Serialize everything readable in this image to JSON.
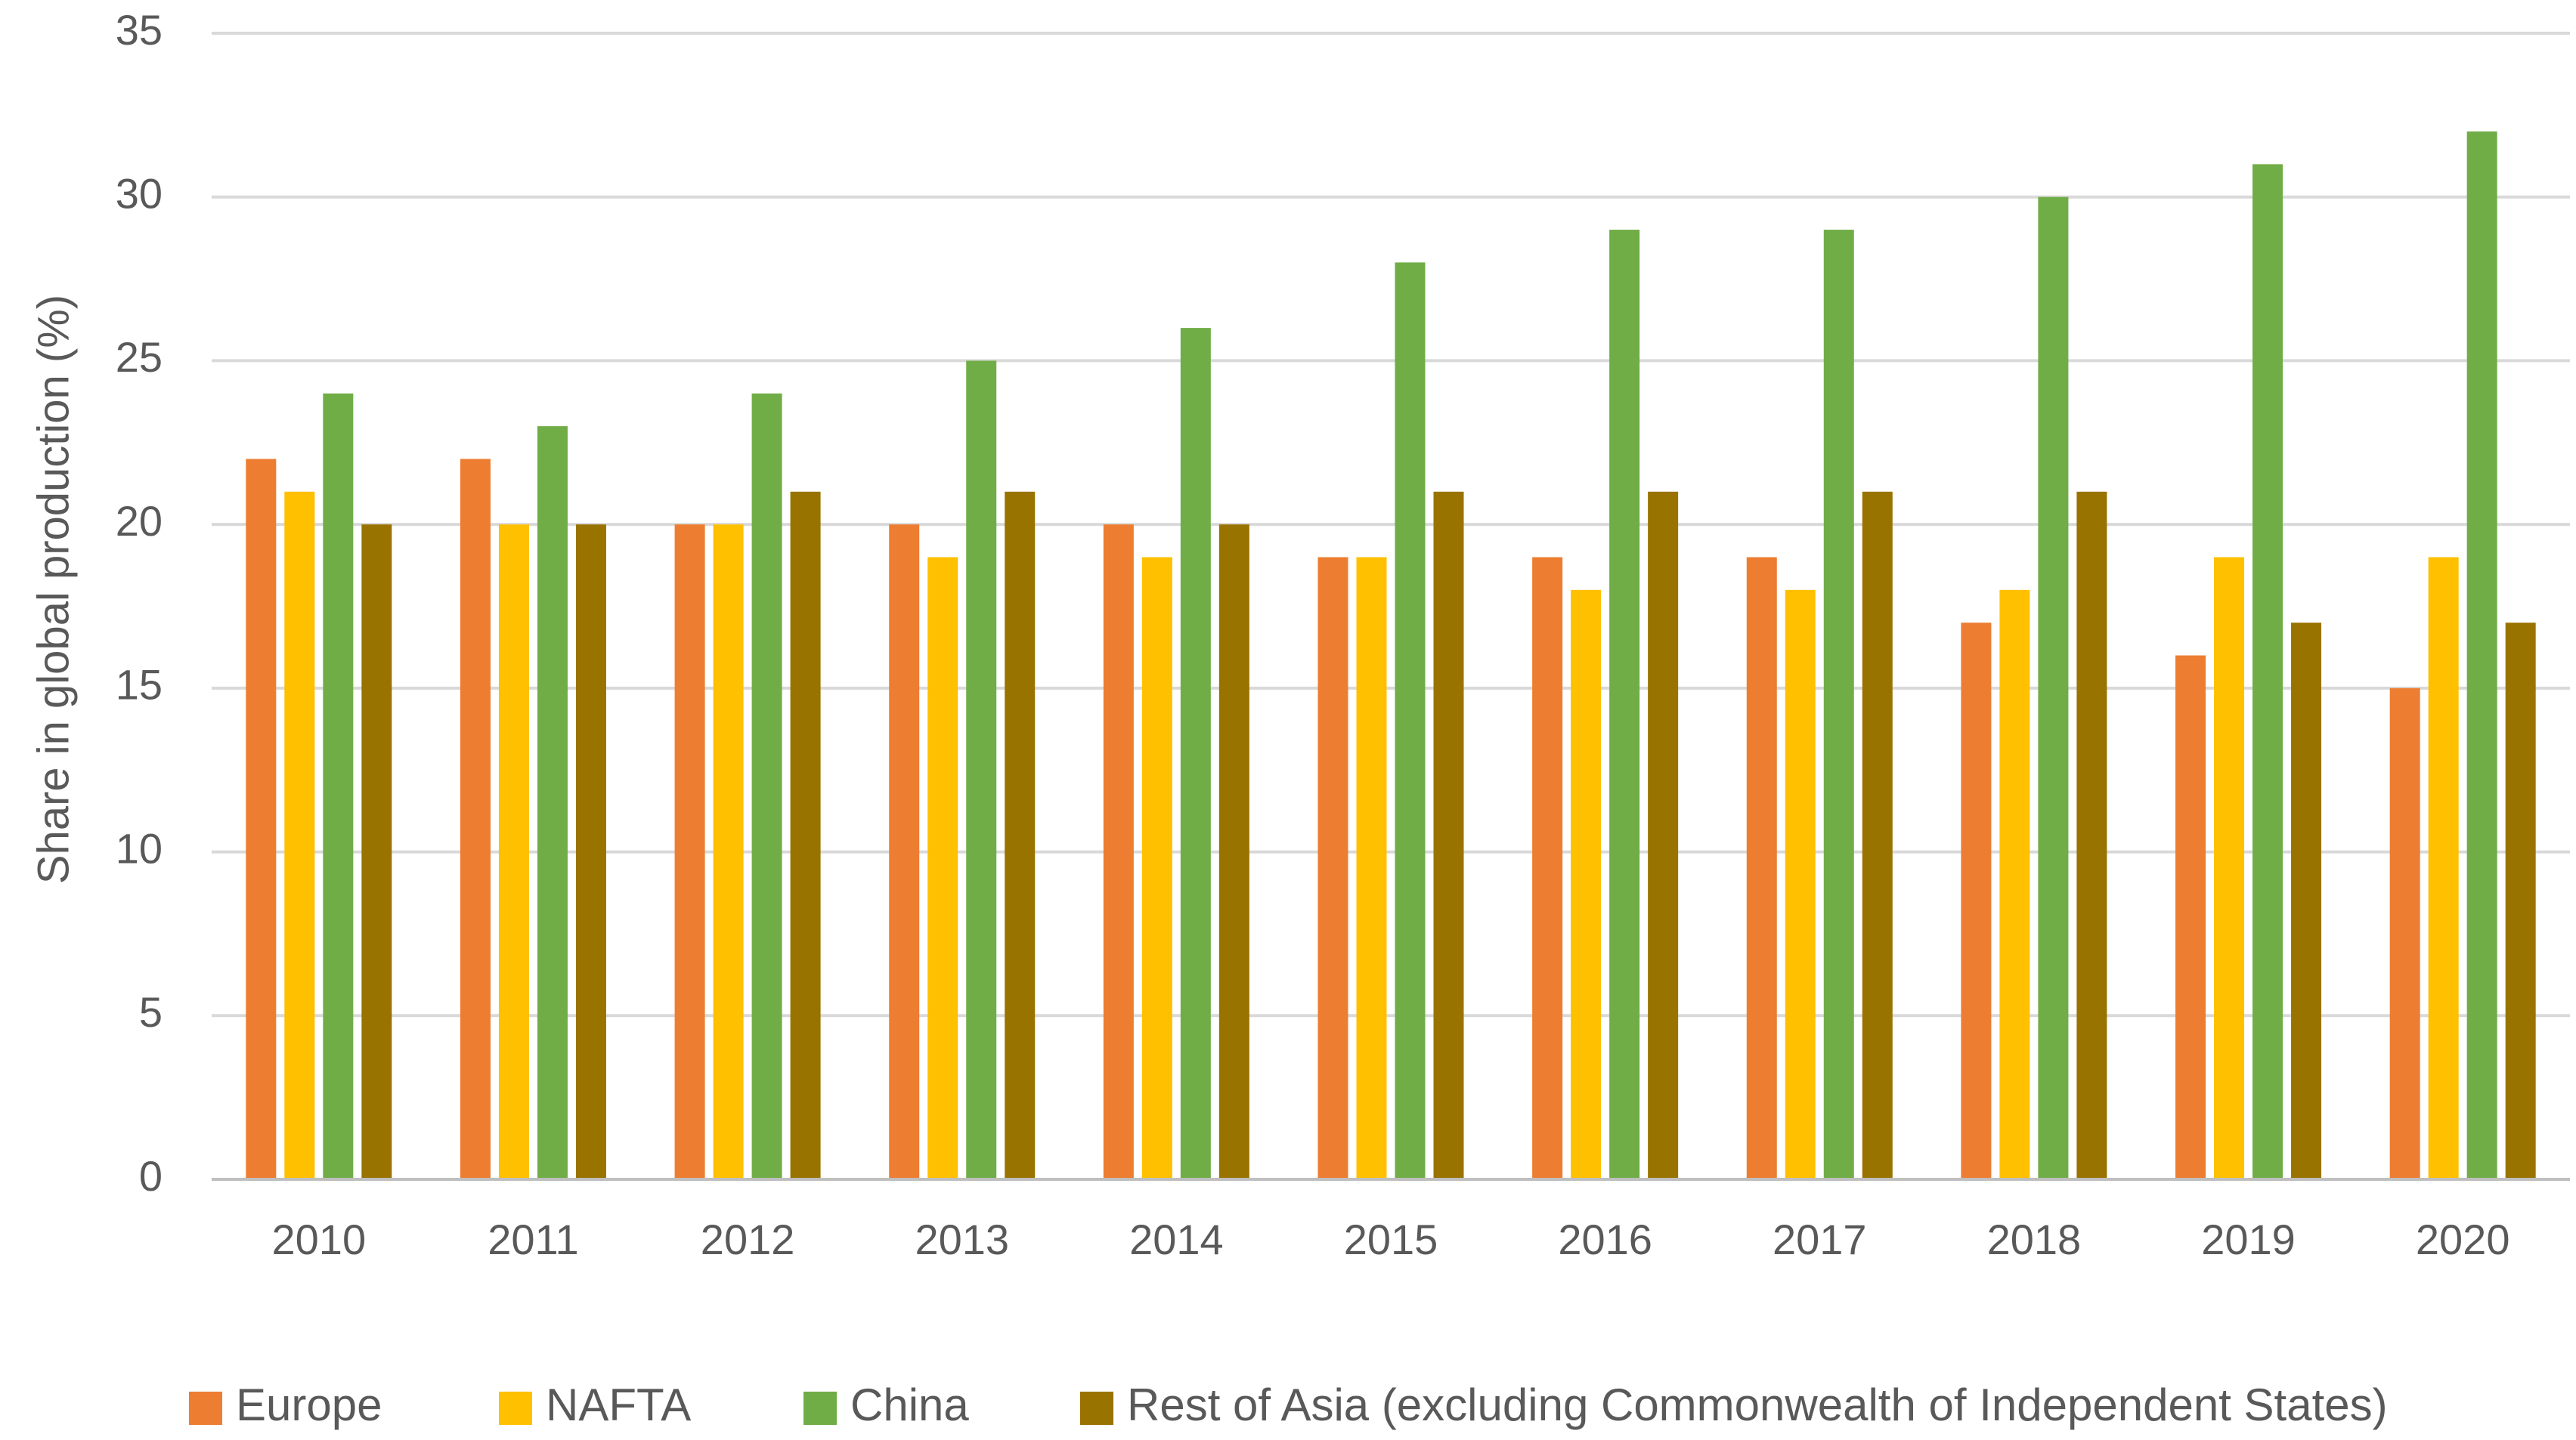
{
  "chart_data": {
    "type": "bar",
    "title": "",
    "xlabel": "",
    "ylabel": "Share in global production (%)",
    "ylim": [
      0,
      35
    ],
    "yticks": [
      "0",
      "5",
      "10",
      "15",
      "20",
      "25",
      "30",
      "35"
    ],
    "grid": true,
    "legend_position": "bottom",
    "categories": [
      "2010",
      "2011",
      "2012",
      "2013",
      "2014",
      "2015",
      "2016",
      "2017",
      "2018",
      "2019",
      "2020"
    ],
    "series": [
      {
        "name": "Europe",
        "color": "#ed7d31",
        "values": [
          22,
          22,
          20,
          20,
          20,
          19,
          19,
          19,
          17,
          16,
          15
        ]
      },
      {
        "name": "NAFTA",
        "color": "#ffc000",
        "values": [
          21,
          20,
          20,
          19,
          19,
          19,
          18,
          18,
          18,
          19,
          19
        ]
      },
      {
        "name": "China",
        "color": "#70ad47",
        "values": [
          24,
          23,
          24,
          25,
          26,
          28,
          29,
          29,
          30,
          31,
          32
        ]
      },
      {
        "name": "Rest of Asia (excluding Commonwealth of Independent States)",
        "color": "#997300",
        "values": [
          20,
          20,
          21,
          21,
          20,
          21,
          21,
          21,
          21,
          17,
          17
        ]
      }
    ]
  }
}
